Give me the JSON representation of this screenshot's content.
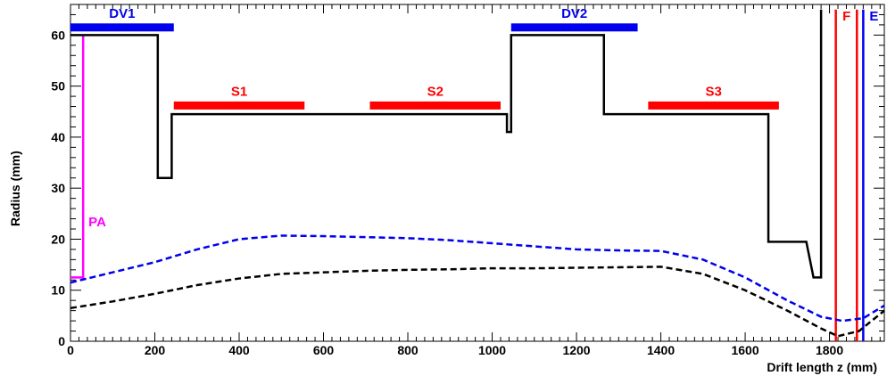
{
  "chart_data": {
    "type": "line",
    "title": "",
    "xlabel": "Drift length z (mm)",
    "ylabel": "Radius (mm)",
    "xlim": [
      0,
      1930
    ],
    "ylim": [
      0,
      66
    ],
    "xticks": [
      0,
      200,
      400,
      600,
      800,
      1000,
      1200,
      1400,
      1600,
      1800
    ],
    "yticks": [
      0,
      10,
      20,
      30,
      40,
      50,
      60
    ],
    "grid": false,
    "series": [
      {
        "kind": "aperture",
        "color": "#000000",
        "style": "solid",
        "points": [
          [
            0,
            60
          ],
          [
            207,
            60
          ],
          [
            207,
            32
          ],
          [
            240,
            32
          ],
          [
            240,
            44.5
          ],
          [
            1035,
            44.5
          ],
          [
            1035,
            41
          ],
          [
            1045,
            41
          ],
          [
            1045,
            60
          ],
          [
            1265,
            60
          ],
          [
            1265,
            44.5
          ],
          [
            1655,
            44.5
          ],
          [
            1655,
            19.5
          ],
          [
            1745,
            19.5
          ],
          [
            1762,
            12.5
          ],
          [
            1780,
            12.5
          ],
          [
            1780,
            65
          ]
        ]
      },
      {
        "kind": "envelope",
        "color": "#0000ee",
        "style": "dashed",
        "points": [
          [
            0,
            11.5
          ],
          [
            50,
            12.5
          ],
          [
            100,
            13.5
          ],
          [
            200,
            15.5
          ],
          [
            300,
            18
          ],
          [
            400,
            20
          ],
          [
            500,
            20.7
          ],
          [
            600,
            20.6
          ],
          [
            700,
            20.4
          ],
          [
            800,
            20.2
          ],
          [
            900,
            19.8
          ],
          [
            1000,
            19.2
          ],
          [
            1100,
            18.6
          ],
          [
            1200,
            18
          ],
          [
            1300,
            17.8
          ],
          [
            1400,
            17.7
          ],
          [
            1500,
            16
          ],
          [
            1600,
            12.5
          ],
          [
            1700,
            8
          ],
          [
            1780,
            4.8
          ],
          [
            1830,
            4
          ],
          [
            1880,
            4.5
          ],
          [
            1930,
            7
          ]
        ]
      },
      {
        "kind": "envelope",
        "color": "#000000",
        "style": "dashed",
        "points": [
          [
            0,
            6.5
          ],
          [
            100,
            7.8
          ],
          [
            200,
            9.3
          ],
          [
            300,
            11
          ],
          [
            400,
            12.3
          ],
          [
            500,
            13.2
          ],
          [
            600,
            13.5
          ],
          [
            700,
            13.8
          ],
          [
            800,
            14
          ],
          [
            900,
            14.1
          ],
          [
            1000,
            14.3
          ],
          [
            1100,
            14.3
          ],
          [
            1200,
            14.4
          ],
          [
            1300,
            14.5
          ],
          [
            1400,
            14.6
          ],
          [
            1500,
            13.2
          ],
          [
            1600,
            10
          ],
          [
            1700,
            6
          ],
          [
            1780,
            2.5
          ],
          [
            1820,
            1
          ],
          [
            1870,
            2
          ],
          [
            1930,
            6
          ]
        ]
      }
    ],
    "regions": [
      {
        "label": "DV1",
        "color": "#0000ee",
        "x": [
          0,
          245
        ],
        "y": 61.5
      },
      {
        "label": "DV2",
        "color": "#0000ee",
        "x": [
          1045,
          1345
        ],
        "y": 61.5
      },
      {
        "label": "S1",
        "color": "#ff0000",
        "x": [
          245,
          555
        ],
        "y": 46.2
      },
      {
        "label": "S2",
        "color": "#ff0000",
        "x": [
          710,
          1020
        ],
        "y": 46.2
      },
      {
        "label": "S3",
        "color": "#ff0000",
        "x": [
          1370,
          1680
        ],
        "y": 46.2
      }
    ],
    "markers": [
      {
        "label": "PA",
        "color": "#ff00ff",
        "points": [
          [
            0,
            12.5
          ],
          [
            30,
            12.5
          ],
          [
            30,
            60
          ]
        ]
      },
      {
        "label": "F",
        "color": "#ff0000",
        "x": 1815,
        "y_range": [
          0,
          65
        ]
      },
      {
        "label": "F",
        "color": "#ff0000",
        "x": 1865,
        "y_range": [
          0,
          65
        ],
        "unlabeled": true
      },
      {
        "label": "E",
        "color": "#0000ee",
        "x": 1880,
        "y_range": [
          0,
          65
        ]
      }
    ]
  }
}
